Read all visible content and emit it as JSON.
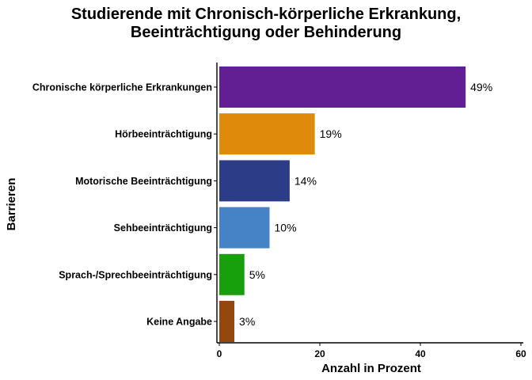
{
  "chart_data": {
    "type": "bar",
    "orientation": "horizontal",
    "title": [
      "Studierende mit Chronisch-körperliche Erkrankung,",
      "Beeinträchtigung  oder Behinderung"
    ],
    "xlabel": "Anzahl in Prozent",
    "ylabel": "Barrieren",
    "xlim": [
      0,
      60
    ],
    "xticks": [
      0,
      20,
      40,
      60
    ],
    "categories": [
      "Chronische körperliche Erkrankungen",
      "Hörbeeinträchtigung",
      "Motorische Beeinträchtigung",
      "Sehbeeinträchtigung",
      "Sprach-/Sprechbeeinträchtigung",
      "Keine Angabe"
    ],
    "values": [
      49,
      19,
      14,
      10,
      5,
      3
    ],
    "value_labels": [
      "49%",
      "19%",
      "14%",
      "10%",
      "5%",
      "3%"
    ],
    "colors": [
      "#621f93",
      "#e08a0c",
      "#2d3c87",
      "#4682c6",
      "#18a00c",
      "#954710"
    ],
    "grid": false,
    "legend": "none"
  }
}
